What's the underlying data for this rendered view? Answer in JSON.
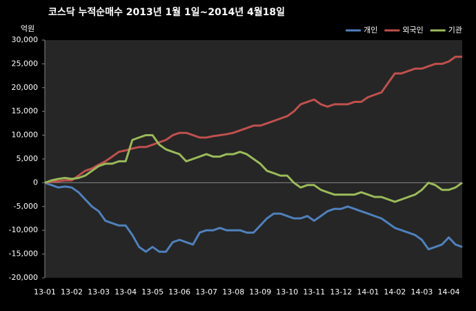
{
  "chart_data": {
    "type": "line",
    "title": "코스닥  누적순매수 2013년 1월 1일~2014년 4월18일",
    "y_label": "억원",
    "categories": [
      "13-01",
      null,
      null,
      null,
      "13-02",
      null,
      null,
      null,
      "13-03",
      null,
      null,
      null,
      "13-04",
      null,
      null,
      null,
      "13-05",
      null,
      null,
      null,
      "13-06",
      null,
      null,
      null,
      "13-07",
      null,
      null,
      null,
      "13-08",
      null,
      null,
      null,
      "13-09",
      null,
      null,
      null,
      "13-10",
      null,
      null,
      null,
      "13-11",
      null,
      null,
      null,
      "13-12",
      null,
      null,
      null,
      "14-01",
      null,
      null,
      null,
      "14-02",
      null,
      null,
      null,
      "14-03",
      null,
      null,
      null,
      "14-04",
      null,
      null
    ],
    "series": [
      {
        "name": "개인",
        "color": "#4f81bd",
        "values": [
          0,
          -500,
          -1000,
          -800,
          -1000,
          -2000,
          -3500,
          -5000,
          -6000,
          -8000,
          -8500,
          -9000,
          -9000,
          -11000,
          -13500,
          -14500,
          -13500,
          -14500,
          -14500,
          -12500,
          -12000,
          -12500,
          -13000,
          -10500,
          -10000,
          -10000,
          -9500,
          -10000,
          -10000,
          -10000,
          -10500,
          -10500,
          -9000,
          -7500,
          -6500,
          -6500,
          -7000,
          -7500,
          -7500,
          -7000,
          -8000,
          -7000,
          -6000,
          -5500,
          -5500,
          -5000,
          -5500,
          -6000,
          -6500,
          -7000,
          -7500,
          -8500,
          -9500,
          -10000,
          -10500,
          -11000,
          -12000,
          -14000,
          -13500,
          -13000,
          -11500,
          -13000,
          -13500
        ]
      },
      {
        "name": "외국인",
        "color": "#c0504d",
        "values": [
          0,
          200,
          300,
          500,
          500,
          1500,
          2500,
          3000,
          3800,
          4500,
          5500,
          6500,
          6800,
          7200,
          7500,
          7500,
          8000,
          8500,
          9000,
          10000,
          10500,
          10500,
          10000,
          9500,
          9500,
          9800,
          10000,
          10200,
          10500,
          11000,
          11500,
          12000,
          12000,
          12500,
          13000,
          13500,
          14000,
          15000,
          16500,
          17000,
          17500,
          16500,
          16000,
          16500,
          16500,
          16500,
          17000,
          17000,
          18000,
          18500,
          19000,
          21000,
          23000,
          23000,
          23500,
          24000,
          24000,
          24500,
          25000,
          25000,
          25500,
          26500,
          26500
        ]
      },
      {
        "name": "기관",
        "color": "#9bbb59",
        "values": [
          0,
          500,
          800,
          1000,
          800,
          1000,
          1500,
          2500,
          3500,
          4000,
          4000,
          4500,
          4500,
          9000,
          9500,
          10000,
          10000,
          8000,
          7000,
          6500,
          6000,
          4500,
          5000,
          5500,
          6000,
          5500,
          5500,
          6000,
          6000,
          6500,
          6000,
          5000,
          4000,
          2500,
          2000,
          1500,
          1500,
          0,
          -1000,
          -500,
          -500,
          -1500,
          -2000,
          -2500,
          -2500,
          -2500,
          -2500,
          -2000,
          -2500,
          -3000,
          -3000,
          -3500,
          -4000,
          -3500,
          -3000,
          -2500,
          -1500,
          0,
          -500,
          -1500,
          -1500,
          -1000,
          0
        ]
      }
    ],
    "ylim": [
      -20000,
      30000
    ],
    "yticks": [
      {
        "value": -20000,
        "label": "-20,000"
      },
      {
        "value": -15000,
        "label": "-15,000"
      },
      {
        "value": -10000,
        "label": "-10,000"
      },
      {
        "value": -5000,
        "label": "-5,000"
      },
      0,
      {
        "value": 5000,
        "label": "5,000"
      },
      {
        "value": 10000,
        "label": "10,000"
      },
      {
        "value": 15000,
        "label": "15,000"
      },
      {
        "value": 20000,
        "label": "20,000"
      },
      {
        "value": 25000,
        "label": "25,000"
      },
      {
        "value": 30000,
        "label": "30,000"
      }
    ],
    "grid": false,
    "legend": "top-right"
  }
}
